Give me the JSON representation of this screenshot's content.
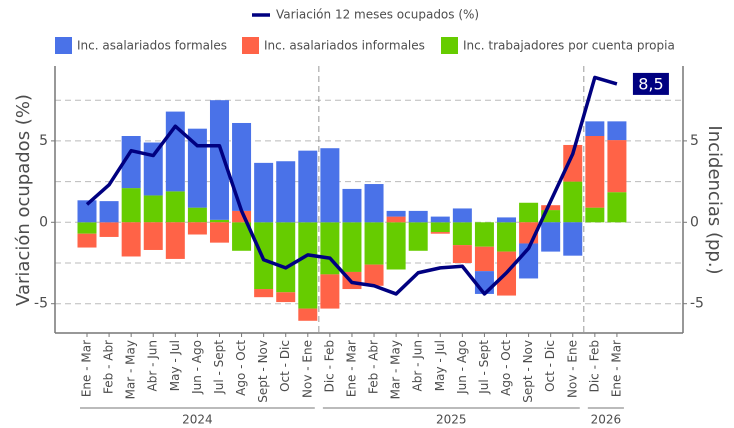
{
  "chart_data": {
    "type": "bar",
    "stacked": true,
    "y_label": "Variación ocupados (%)",
    "y2_label": "Incidencias (pp.)",
    "categories": [
      "Ene - Mar",
      "Feb - Abr",
      "Mar - May",
      "Abr - Jun",
      "May - Jul",
      "Jun - Ago",
      "Jul - Sept",
      "Ago - Oct",
      "Sept - Nov",
      "Oct - Dic",
      "Nov - Ene",
      "Dic - Feb",
      "Ene - Mar",
      "Feb - Abr",
      "Mar - May",
      "Abr - Jun",
      "May - Jul",
      "Jun - Ago",
      "Jul - Sept",
      "Ago - Oct",
      "Sept - Nov",
      "Oct - Dic",
      "Nov - Ene",
      "Dic - Feb",
      "Ene - Mar"
    ],
    "year_groups": [
      {
        "label": "2024",
        "count": 11
      },
      {
        "label": "2025",
        "count": 12
      },
      {
        "label": "2026",
        "count": 2
      }
    ],
    "series": [
      {
        "name": "Inc. asalariados formales",
        "color": "#4a72e8",
        "axis": "y2",
        "values": [
          1.35,
          1.3,
          3.2,
          3.25,
          4.9,
          4.85,
          7.35,
          5.4,
          3.65,
          3.75,
          4.4,
          4.55,
          2.05,
          2.35,
          0.35,
          0.7,
          0.35,
          0.85,
          -1.4,
          0.3,
          -2.15,
          -1.8,
          -2.05,
          0.9,
          1.15
        ]
      },
      {
        "name": "Inc. asalariados informales",
        "color": "#ff6347",
        "axis": "y2",
        "values": [
          -0.85,
          -0.9,
          -2.1,
          -1.7,
          -2.25,
          -0.75,
          -1.25,
          0.7,
          -0.5,
          -0.6,
          -0.75,
          -2.1,
          -1.05,
          -1.3,
          0.35,
          0,
          -0.1,
          -1.1,
          -1.5,
          -2.7,
          -1.3,
          0.3,
          2.25,
          4.4,
          3.2
        ]
      },
      {
        "name": "Inc. trabajadores por cuenta propia",
        "color": "#66cc00",
        "axis": "y2",
        "values": [
          -0.7,
          0,
          2.1,
          1.65,
          1.9,
          0.9,
          0.15,
          -1.75,
          -4.1,
          -4.3,
          -5.3,
          -3.2,
          -3.05,
          -2.6,
          -2.9,
          -1.75,
          -0.6,
          -1.4,
          -1.5,
          -1.8,
          1.2,
          0.75,
          2.5,
          0.9,
          1.85
        ]
      },
      {
        "name": "Variación 12 meses ocupados (%)",
        "color": "#000080",
        "type": "line",
        "values": [
          1.1,
          2.3,
          4.4,
          4.1,
          5.9,
          4.7,
          4.7,
          0.7,
          -2.3,
          -2.8,
          -2.0,
          -2.2,
          -3.7,
          -3.9,
          -4.4,
          -3.1,
          -2.8,
          -2.7,
          -4.4,
          -3.1,
          -1.6,
          1.3,
          4.2,
          8.9,
          8.5
        ],
        "value_labels": [
          null,
          null,
          null,
          null,
          null,
          null,
          null,
          null,
          null,
          null,
          null,
          null,
          null,
          null,
          null,
          null,
          null,
          null,
          null,
          null,
          null,
          null,
          null,
          null,
          "8,5"
        ]
      }
    ],
    "ylim": [
      -6.8,
      9.6
    ],
    "yticks": [
      -5,
      0,
      5
    ],
    "y2lim": [
      -6.8,
      9.6
    ],
    "y2ticks": [
      -5,
      0,
      5
    ],
    "minor_yticks": [
      -2.5,
      2.5,
      7.5
    ],
    "grid": true
  }
}
